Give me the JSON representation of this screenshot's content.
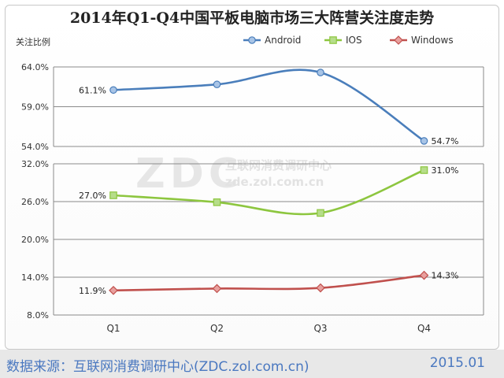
{
  "title": "2014年Q1-Q4中国平板电脑市场三大阵营关注度走势",
  "ylabel": "关注比例",
  "watermark": {
    "logo": "ZDC",
    "cn": "互联网消费调研中心",
    "url": "zde.zol.com.cn"
  },
  "footer": {
    "source": "数据来源：互联网消费调研中心(ZDC.zol.com.cn)",
    "date": "2015.01"
  },
  "chart_data": [
    {
      "type": "line",
      "categories": [
        "Q1",
        "Q2",
        "Q3",
        "Q4"
      ],
      "ylim": [
        54.0,
        64.0
      ],
      "yticks": [
        "64.0%",
        "59.0%",
        "54.0%"
      ],
      "grid": true,
      "legend": "top",
      "series": [
        {
          "name": "Android",
          "values": [
            61.1,
            61.8,
            63.3,
            54.7
          ],
          "labels": [
            "61.1%",
            "",
            "",
            "54.7%"
          ],
          "color": "#4a7ebb",
          "marker": "circle",
          "marker_fill": "#a8c4e6"
        }
      ]
    },
    {
      "type": "line",
      "categories": [
        "Q1",
        "Q2",
        "Q3",
        "Q4"
      ],
      "ylim": [
        8.0,
        32.0
      ],
      "yticks": [
        "32.0%",
        "26.0%",
        "20.0%",
        "14.0%",
        "8.0%"
      ],
      "grid": true,
      "legend": "top",
      "series": [
        {
          "name": "IOS",
          "values": [
            27.0,
            25.9,
            24.2,
            31.0
          ],
          "labels": [
            "27.0%",
            "",
            "",
            "31.0%"
          ],
          "color": "#8dc63f",
          "marker": "square",
          "marker_fill": "#b6dd8a"
        },
        {
          "name": "Windows",
          "values": [
            11.9,
            12.2,
            12.3,
            14.3
          ],
          "labels": [
            "11.9%",
            "",
            "",
            "14.3%"
          ],
          "color": "#c0504d",
          "marker": "diamond",
          "marker_fill": "#e8a09e"
        }
      ]
    }
  ]
}
